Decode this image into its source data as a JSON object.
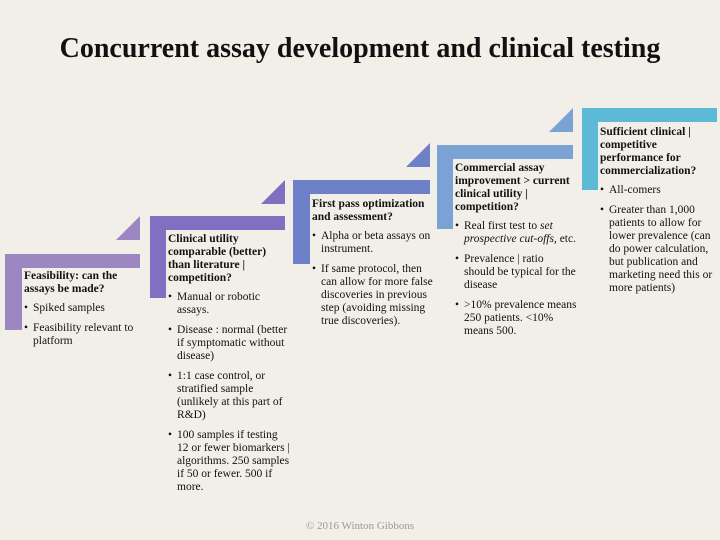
{
  "title": "Concurrent assay development and clinical testing",
  "steps": [
    {
      "heading": "Feasibility: can the assays be made?",
      "bullets": [
        "Spiked samples",
        "Feasibility relevant to platform"
      ]
    },
    {
      "heading": "Clinical utility comparable (better) than literature | competition?",
      "bullets": [
        "Manual or robotic assays.",
        "Disease : normal (better if symptomatic without disease)",
        "1:1 case control, or stratified sample (unlikely at this part of R&D)",
        "100 samples if testing 12 or fewer biomarkers | algorithms. 250 samples if 50 or fewer. 500 if more."
      ]
    },
    {
      "heading": "First pass optimization and assessment?",
      "bullets": [
        "Alpha or beta assays on instrument.",
        "If same protocol, then can allow for more false discoveries in previous step (avoiding missing true discoveries)."
      ]
    },
    {
      "heading": "Commercial assay improvement > current clinical utility | competition?",
      "bullets": [
        {
          "text": "Real first test to ",
          "emphasis": "set prospective cut-offs",
          "after": ", etc."
        },
        "Prevalence | ratio should be typical for the disease",
        ">10% prevalence means 250 patients. <10% means 500."
      ]
    },
    {
      "heading": "Sufficient clinical | competitive performance for commercialization?",
      "bullets": [
        "All-comers",
        "Greater than 1,000 patients to allow for lower prevalence (can do power calculation, but publication and marketing need this or more patients)"
      ]
    }
  ],
  "footer": "© 2016 Winton Gibbons"
}
